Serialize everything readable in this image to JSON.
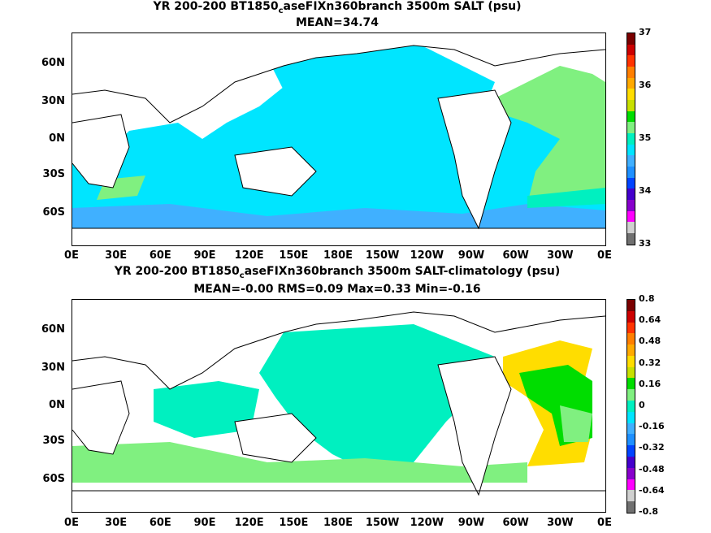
{
  "top": {
    "title_pre": "YR 200-200 BT1850",
    "title_sub": "c",
    "title_post": "aseFIXn360branch 3500m SALT (psu)",
    "subtitle": "MEAN=34.74",
    "colorbar_ticks": [
      "37",
      "36",
      "35",
      "34",
      "33"
    ]
  },
  "bottom": {
    "title_pre": "YR 200-200 BT1850",
    "title_sub": "c",
    "title_post": "aseFIXn360branch 3500m SALT-climatology (psu)",
    "subtitle": "MEAN=-0.00   RMS=0.09   Max=0.33   Min=-0.16",
    "colorbar_ticks": [
      "0.8",
      "0.64",
      "0.48",
      "0.32",
      "0.16",
      "0",
      "-0.16",
      "-0.32",
      "-0.48",
      "-0.64",
      "-0.8"
    ]
  },
  "lat_labels": [
    "60N",
    "30N",
    "0N",
    "30S",
    "60S"
  ],
  "lon_labels": [
    "0E",
    "30E",
    "60E",
    "90E",
    "120E",
    "150E",
    "180E",
    "150W",
    "120W",
    "90W",
    "60W",
    "30W",
    "0E"
  ],
  "colors": {
    "cyan": "#00e5ff",
    "light_green": "#80f080",
    "green": "#00dd00",
    "yellow": "#ffee00",
    "orange": "#ffaa00",
    "blue": "#1e90ff"
  },
  "colorbar_palette": [
    "#7a0000",
    "#cc0000",
    "#ff3300",
    "#ff7f00",
    "#ffaa00",
    "#ffdd00",
    "#c8e000",
    "#00dd00",
    "#80f080",
    "#00f0c0",
    "#00e5ff",
    "#40b0ff",
    "#1e90ff",
    "#0044ff",
    "#4400cc",
    "#8800cc",
    "#ff00ff",
    "#d0d0d0",
    "#707070"
  ]
}
